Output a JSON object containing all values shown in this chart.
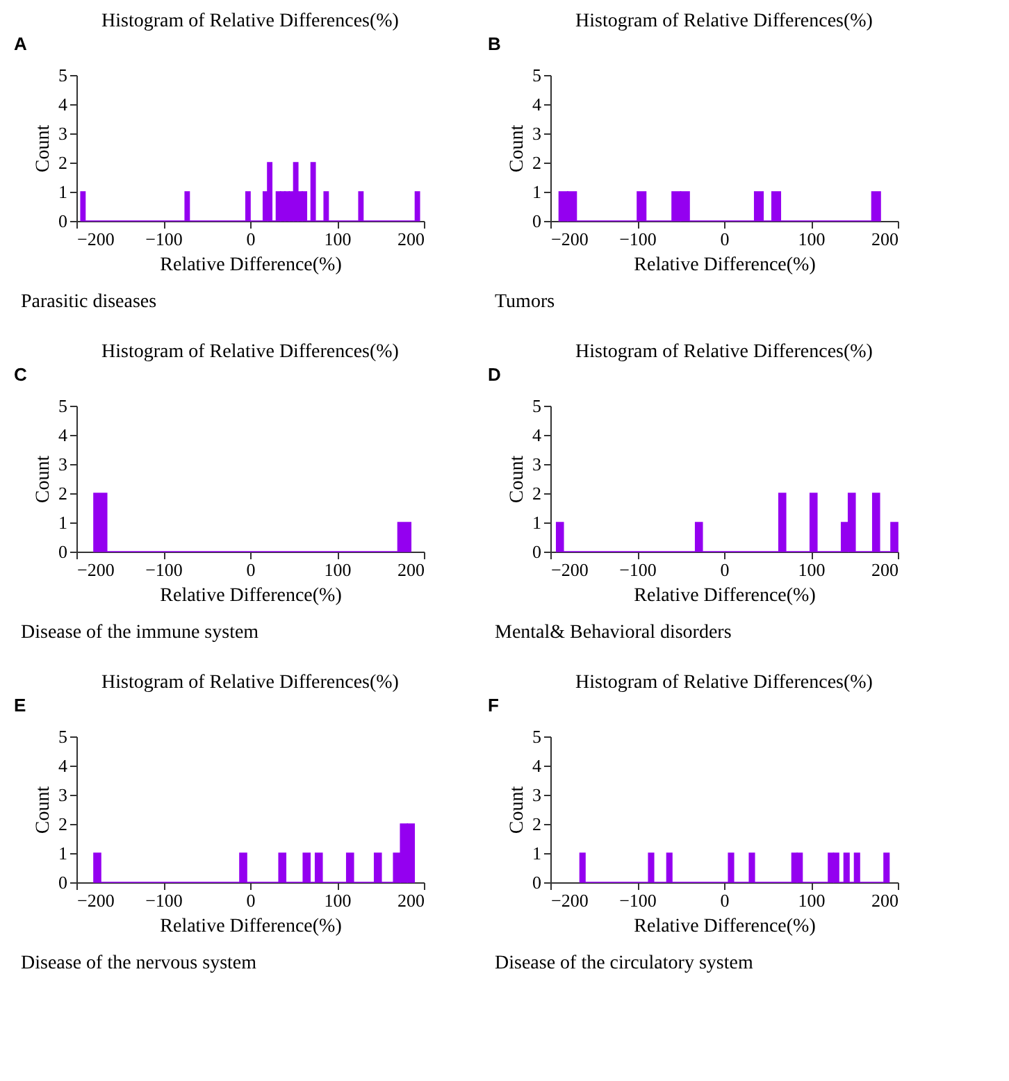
{
  "chart_data": [
    {
      "type": "histogram",
      "title": "Histogram of Relative Differences(%)",
      "xlabel": "Relative Difference(%)",
      "ylabel": "Count",
      "annotations": [
        "A",
        "Parasitic diseases"
      ],
      "color": "#9400f0",
      "bins": [
        -195,
        -190,
        -75,
        -70,
        -5,
        0,
        15,
        20,
        25,
        30,
        35,
        40,
        45,
        50,
        55,
        60,
        65,
        70,
        75,
        85,
        90,
        125,
        130,
        190,
        195
      ],
      "values": [
        1,
        0,
        1,
        0,
        1,
        0,
        1,
        2,
        0,
        1,
        1,
        1,
        1,
        2,
        1,
        1,
        0,
        2,
        0,
        1,
        0,
        1,
        0,
        1
      ],
      "xlim": [
        -200,
        200
      ],
      "xticks": [
        -200,
        -100,
        0,
        100,
        200
      ],
      "ylim": [
        0,
        5
      ],
      "yticks": [
        0,
        1,
        2,
        3,
        4,
        5
      ]
    },
    {
      "type": "histogram",
      "title": "Histogram of Relative Differences(%)",
      "xlabel": "Relative Difference(%)",
      "ylabel": "Count",
      "annotations": [
        "B",
        "Tumors"
      ],
      "color": "#9400f0",
      "bins": [
        -190,
        -180,
        -170,
        -100,
        -90,
        -60,
        -50,
        -40,
        35,
        45,
        55,
        65,
        170,
        180
      ],
      "values": [
        1,
        1,
        0,
        1,
        0,
        1,
        1,
        0,
        1,
        0,
        1,
        0,
        1
      ],
      "xlim": [
        -200,
        200
      ],
      "xticks": [
        -200,
        -100,
        0,
        100,
        200
      ],
      "ylim": [
        0,
        5
      ],
      "yticks": [
        0,
        1,
        2,
        3,
        4,
        5
      ]
    },
    {
      "type": "histogram",
      "title": "Histogram of Relative Differences(%)",
      "xlabel": "Relative Difference(%)",
      "ylabel": "Count",
      "annotations": [
        "C",
        "Disease of the immune system"
      ],
      "color": "#9400f0",
      "bins": [
        -180,
        -165,
        170,
        185
      ],
      "values": [
        2,
        0,
        1
      ],
      "xlim": [
        -200,
        200
      ],
      "xticks": [
        -200,
        -100,
        0,
        100,
        200
      ],
      "ylim": [
        0,
        5
      ],
      "yticks": [
        0,
        1,
        2,
        3,
        4,
        5
      ]
    },
    {
      "type": "histogram",
      "title": "Histogram of Relative Differences(%)",
      "xlabel": "Relative Difference(%)",
      "ylabel": "Count",
      "annotations": [
        "D",
        "Mental& Behavioral disorders"
      ],
      "color": "#9400f0",
      "bins": [
        -193,
        -185,
        -33,
        -25,
        63,
        71,
        99,
        107,
        135,
        143,
        151,
        171,
        179,
        192,
        200
      ],
      "values": [
        1,
        0,
        1,
        0,
        2,
        0,
        2,
        0,
        1,
        2,
        0,
        2,
        0,
        1
      ],
      "xlim": [
        -200,
        200
      ],
      "xticks": [
        -200,
        -100,
        0,
        100,
        200
      ],
      "ylim": [
        0,
        5
      ],
      "yticks": [
        0,
        1,
        2,
        3,
        4,
        5
      ]
    },
    {
      "type": "histogram",
      "title": "Histogram of Relative Differences(%)",
      "xlabel": "Relative Difference(%)",
      "ylabel": "Count",
      "annotations": [
        "E",
        "Disease of the nervous system"
      ],
      "color": "#9400f0",
      "bins": [
        -180,
        -172,
        -12,
        -4,
        33,
        41,
        61,
        69,
        75,
        83,
        111,
        119,
        143,
        151,
        165,
        173,
        181,
        189
      ],
      "values": [
        1,
        0,
        1,
        0,
        1,
        0,
        1,
        0,
        1,
        0,
        1,
        0,
        1,
        0,
        1,
        2,
        2
      ],
      "xlim": [
        -200,
        200
      ],
      "xticks": [
        -200,
        -100,
        0,
        100,
        200
      ],
      "ylim": [
        0,
        5
      ],
      "yticks": [
        0,
        1,
        2,
        3,
        4,
        5
      ]
    },
    {
      "type": "histogram",
      "title": "Histogram of Relative Differences(%)",
      "xlabel": "Relative Difference(%)",
      "ylabel": "Count",
      "annotations": [
        "F",
        "Disease of the circulatory system"
      ],
      "color": "#9400f0",
      "bins": [
        -166,
        -160,
        -87,
        -81,
        -66,
        -60,
        5,
        11,
        29,
        35,
        78,
        84,
        90,
        120,
        126,
        132,
        138,
        144,
        150,
        156,
        184,
        190
      ],
      "values": [
        1,
        0,
        1,
        0,
        1,
        0,
        1,
        0,
        1,
        0,
        1,
        1,
        0,
        1,
        1,
        0,
        1,
        0,
        1,
        0,
        1
      ],
      "xlim": [
        -200,
        200
      ],
      "xticks": [
        -200,
        -100,
        0,
        100,
        200
      ],
      "ylim": [
        0,
        5
      ],
      "yticks": [
        0,
        1,
        2,
        3,
        4,
        5
      ]
    }
  ]
}
